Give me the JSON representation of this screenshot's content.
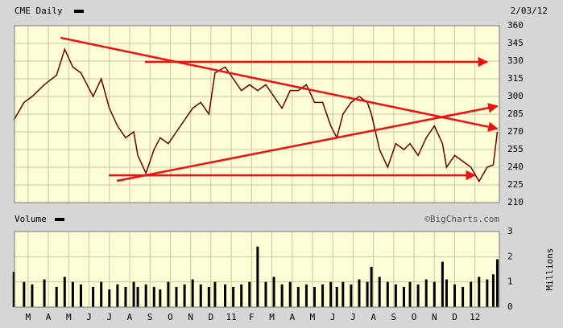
{
  "chart_data": [
    {
      "type": "line",
      "title": "CME Daily",
      "date": "2/03/12",
      "color": "#6a0000",
      "xlim": [
        -0.67,
        23.2
      ],
      "ylim": [
        210,
        360
      ],
      "yticks": [
        210,
        225,
        240,
        255,
        270,
        285,
        300,
        315,
        330,
        345,
        360
      ],
      "grid": true,
      "x": [
        -0.7,
        -0.2,
        0.2,
        0.8,
        1.4,
        1.8,
        2.2,
        2.6,
        3.2,
        3.6,
        4.0,
        4.4,
        4.8,
        5.2,
        5.4,
        5.8,
        6.2,
        6.5,
        6.9,
        7.3,
        7.7,
        8.1,
        8.5,
        8.9,
        9.2,
        9.7,
        10.1,
        10.5,
        10.9,
        11.3,
        11.7,
        12.1,
        12.5,
        12.9,
        13.3,
        13.7,
        14.1,
        14.5,
        14.9,
        15.2,
        15.5,
        15.9,
        16.3,
        16.7,
        16.9,
        17.3,
        17.7,
        18.1,
        18.5,
        18.8,
        19.2,
        19.6,
        20.0,
        20.4,
        20.6,
        21.0,
        21.4,
        21.8,
        22.2,
        22.6,
        22.9,
        23.1
      ],
      "values": [
        280,
        295,
        300,
        310,
        318,
        340,
        325,
        320,
        300,
        315,
        290,
        275,
        265,
        270,
        250,
        235,
        255,
        265,
        260,
        270,
        280,
        290,
        295,
        285,
        320,
        325,
        315,
        305,
        310,
        305,
        310,
        300,
        290,
        305,
        305,
        310,
        295,
        295,
        275,
        265,
        285,
        295,
        300,
        295,
        285,
        255,
        240,
        260,
        255,
        260,
        250,
        265,
        275,
        260,
        240,
        250,
        245,
        240,
        228,
        240,
        242,
        270
      ],
      "trendlines": {
        "color": "#ee1111",
        "lines": [
          {
            "x": [
              1.6,
              23.1
            ],
            "y": [
              349.8,
              272.7
            ]
          },
          {
            "x": [
              5.75,
              22.6
            ],
            "y": [
              329.3,
              329.3
            ]
          },
          {
            "x": [
              4.37,
              23.1
            ],
            "y": [
              228.4,
              291.8
            ]
          },
          {
            "x": [
              3.97,
              22.0
            ],
            "y": [
              233.2,
              233.2
            ]
          }
        ]
      }
    },
    {
      "type": "bar",
      "title": "Volume",
      "credit": "©BigCharts.com",
      "y_label": "Millions",
      "color": "#000000",
      "xlim": [
        -0.67,
        23.2
      ],
      "ylim": [
        0,
        3
      ],
      "yticks": [
        0,
        1,
        2,
        3
      ],
      "grid": true,
      "xticks": [
        {
          "value": 0,
          "label": "M"
        },
        {
          "value": 1,
          "label": "A"
        },
        {
          "value": 2,
          "label": "M"
        },
        {
          "value": 3,
          "label": "J"
        },
        {
          "value": 4,
          "label": "J"
        },
        {
          "value": 5,
          "label": "A"
        },
        {
          "value": 6,
          "label": "S"
        },
        {
          "value": 7,
          "label": "O"
        },
        {
          "value": 8,
          "label": "N"
        },
        {
          "value": 9,
          "label": "D"
        },
        {
          "value": 10,
          "label": "11"
        },
        {
          "value": 11,
          "label": "F"
        },
        {
          "value": 12,
          "label": "M"
        },
        {
          "value": 13,
          "label": "A"
        },
        {
          "value": 14,
          "label": "M"
        },
        {
          "value": 15,
          "label": "J"
        },
        {
          "value": 16,
          "label": "J"
        },
        {
          "value": 17,
          "label": "A"
        },
        {
          "value": 18,
          "label": "S"
        },
        {
          "value": 19,
          "label": "O"
        },
        {
          "value": 20,
          "label": "N"
        },
        {
          "value": 21,
          "label": "D"
        },
        {
          "value": 22,
          "label": "12"
        }
      ],
      "x": [
        -0.7,
        -0.2,
        0.2,
        0.8,
        1.4,
        1.8,
        2.2,
        2.6,
        3.2,
        3.6,
        4.0,
        4.4,
        4.8,
        5.2,
        5.4,
        5.8,
        6.2,
        6.5,
        6.9,
        7.3,
        7.7,
        8.1,
        8.5,
        8.9,
        9.2,
        9.7,
        10.1,
        10.5,
        10.9,
        11.3,
        11.7,
        12.1,
        12.5,
        12.9,
        13.3,
        13.7,
        14.1,
        14.5,
        14.9,
        15.2,
        15.5,
        15.9,
        16.3,
        16.7,
        16.9,
        17.3,
        17.7,
        18.1,
        18.5,
        18.8,
        19.2,
        19.6,
        20.0,
        20.4,
        20.6,
        21.0,
        21.4,
        21.8,
        22.2,
        22.6,
        22.9,
        23.1
      ],
      "values": [
        1.4,
        1.0,
        0.9,
        1.1,
        0.8,
        1.2,
        1.0,
        0.9,
        0.8,
        1.0,
        0.7,
        0.9,
        0.8,
        1.0,
        0.8,
        0.9,
        0.8,
        0.7,
        1.0,
        0.8,
        0.9,
        1.1,
        0.9,
        0.8,
        1.0,
        0.9,
        0.8,
        0.9,
        1.0,
        2.4,
        1.0,
        1.2,
        0.9,
        1.0,
        0.8,
        0.9,
        0.8,
        0.9,
        1.0,
        0.8,
        1.0,
        0.9,
        1.1,
        1.0,
        1.6,
        1.2,
        1.0,
        0.9,
        0.8,
        1.0,
        0.9,
        1.1,
        1.0,
        1.8,
        1.1,
        0.9,
        0.8,
        1.0,
        1.2,
        1.1,
        1.3,
        1.9
      ]
    }
  ]
}
